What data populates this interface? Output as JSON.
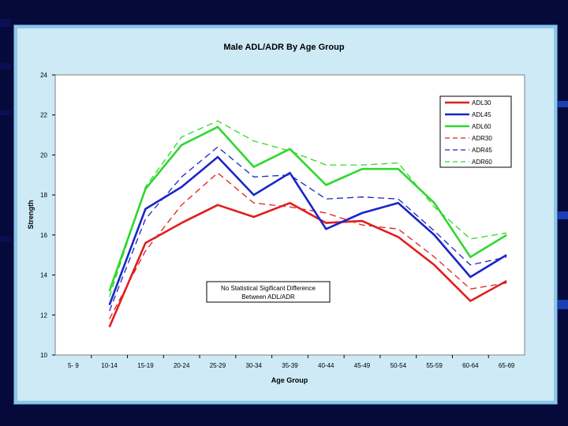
{
  "chart_data": {
    "type": "line",
    "title": "Male ADL/ADR  By Age Group",
    "xlabel": "Age Group",
    "ylabel": "Strength",
    "ylim": [
      10,
      24
    ],
    "yticks": [
      10,
      12,
      14,
      16,
      18,
      20,
      22,
      24
    ],
    "categories": [
      "5- 9",
      "10-14",
      "15-19",
      "20-24",
      "25-29",
      "30-34",
      "35-39",
      "40-44",
      "45-49",
      "50-54",
      "55-59",
      "60-64",
      "65-69"
    ],
    "series": [
      {
        "name": "ADL30",
        "color": "#e01e1e",
        "dashed": false,
        "values": [
          null,
          11.4,
          15.6,
          16.6,
          17.5,
          16.9,
          17.6,
          16.6,
          16.7,
          15.9,
          14.5,
          12.7,
          13.7
        ]
      },
      {
        "name": "ADL45",
        "color": "#1a26c8",
        "dashed": false,
        "values": [
          null,
          12.5,
          17.3,
          18.4,
          19.9,
          18.0,
          19.1,
          16.3,
          17.1,
          17.6,
          16.0,
          13.9,
          15.0
        ]
      },
      {
        "name": "ADL60",
        "color": "#2ed82e",
        "dashed": false,
        "values": [
          null,
          13.2,
          18.3,
          20.5,
          21.4,
          19.4,
          20.3,
          18.5,
          19.3,
          19.3,
          17.6,
          14.9,
          16.0
        ]
      },
      {
        "name": "ADR30",
        "color": "#e01e1e",
        "dashed": true,
        "values": [
          null,
          11.8,
          15.2,
          17.5,
          19.1,
          17.6,
          17.4,
          17.1,
          16.5,
          16.3,
          14.9,
          13.3,
          13.6
        ]
      },
      {
        "name": "ADR45",
        "color": "#1a26c8",
        "dashed": true,
        "values": [
          null,
          12.2,
          16.8,
          18.9,
          20.4,
          18.9,
          19.0,
          17.8,
          17.9,
          17.8,
          16.2,
          14.5,
          14.9
        ]
      },
      {
        "name": "ADR60",
        "color": "#2ed82e",
        "dashed": true,
        "values": [
          null,
          12.9,
          18.4,
          20.9,
          21.7,
          20.7,
          20.2,
          19.5,
          19.5,
          19.6,
          17.4,
          15.8,
          16.1
        ]
      }
    ],
    "annotation": [
      "No Statistical Sigificant Difference",
      "Between ADL/ADR"
    ],
    "grid": false,
    "legend_position": "top-right"
  }
}
